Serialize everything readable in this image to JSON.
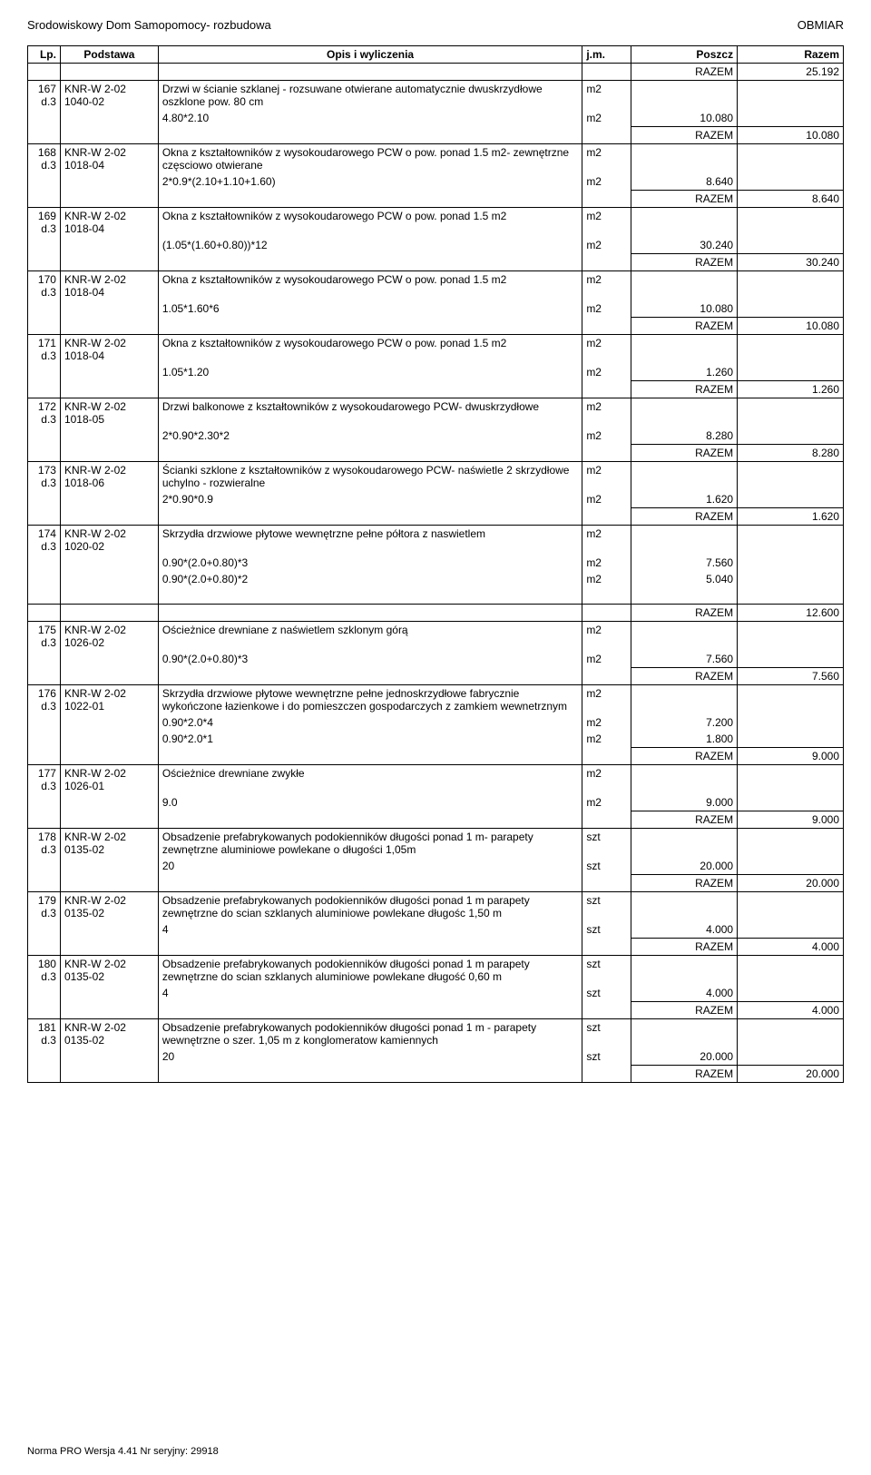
{
  "header": {
    "title_left": "Srodowiskowy Dom Samopomocy- rozbudowa",
    "title_right": "OBMIAR"
  },
  "columns": {
    "lp": "Lp.",
    "podstawa": "Podstawa",
    "opis": "Opis i wyliczenia",
    "jm": "j.m.",
    "poszcz": "Poszcz",
    "razem": "Razem"
  },
  "rows": [
    {
      "type": "razem",
      "label": "RAZEM",
      "value": "25.192"
    },
    {
      "type": "item",
      "lp": "167",
      "dz": "d.3",
      "code": "KNR-W 2-02 1040-02",
      "desc": "Drzwi w ścianie szklanej - rozsuwane  otwierane automatycznie dwuskrzydłowe oszklone pow. 80 cm",
      "jm": "m2"
    },
    {
      "type": "calc",
      "expr": "4.80*2.10",
      "jm": "m2",
      "poszcz": "10.080"
    },
    {
      "type": "razem",
      "label": "RAZEM",
      "value": "10.080"
    },
    {
      "type": "item",
      "lp": "168",
      "dz": "d.3",
      "code": "KNR-W 2-02 1018-04",
      "desc": "Okna z kształtowników z wysokoudarowego PCW o pow. ponad 1.5 m2- zewnętrzne częsciowo otwierane",
      "jm": "m2"
    },
    {
      "type": "calc",
      "expr": "2*0.9*(2.10+1.10+1.60)",
      "jm": "m2",
      "poszcz": "8.640"
    },
    {
      "type": "razem",
      "label": "RAZEM",
      "value": "8.640"
    },
    {
      "type": "item",
      "lp": "169",
      "dz": "d.3",
      "code": "KNR-W 2-02 1018-04",
      "desc": "Okna z kształtowników z wysokoudarowego PCW o pow. ponad 1.5 m2",
      "jm": "m2"
    },
    {
      "type": "calc",
      "expr": "(1.05*(1.60+0.80))*12",
      "jm": "m2",
      "poszcz": "30.240"
    },
    {
      "type": "razem",
      "label": "RAZEM",
      "value": "30.240"
    },
    {
      "type": "item",
      "lp": "170",
      "dz": "d.3",
      "code": "KNR-W 2-02 1018-04",
      "desc": "Okna z kształtowników z wysokoudarowego PCW o pow. ponad 1.5 m2",
      "jm": "m2"
    },
    {
      "type": "calc",
      "expr": "1.05*1.60*6",
      "jm": "m2",
      "poszcz": "10.080"
    },
    {
      "type": "razem",
      "label": "RAZEM",
      "value": "10.080"
    },
    {
      "type": "item",
      "lp": "171",
      "dz": "d.3",
      "code": "KNR-W 2-02 1018-04",
      "desc": "Okna z kształtowników z wysokoudarowego PCW o pow. ponad 1.5 m2",
      "jm": "m2"
    },
    {
      "type": "calc",
      "expr": "1.05*1.20",
      "jm": "m2",
      "poszcz": "1.260"
    },
    {
      "type": "razem",
      "label": "RAZEM",
      "value": "1.260"
    },
    {
      "type": "item",
      "lp": "172",
      "dz": "d.3",
      "code": "KNR-W 2-02 1018-05",
      "desc": "Drzwi balkonowe z kształtowników z wysokoudarowego PCW- dwuskrzydłowe",
      "jm": "m2"
    },
    {
      "type": "calc",
      "expr": "2*0.90*2.30*2",
      "jm": "m2",
      "poszcz": "8.280"
    },
    {
      "type": "razem",
      "label": "RAZEM",
      "value": "8.280"
    },
    {
      "type": "item",
      "lp": "173",
      "dz": "d.3",
      "code": "KNR-W 2-02 1018-06",
      "desc": "Ścianki szklone z kształtowników z wysokoudarowego PCW- naświetle 2 skrzydłowe uchylno - rozwieralne",
      "jm": "m2"
    },
    {
      "type": "calc",
      "expr": "2*0.90*0.9",
      "jm": "m2",
      "poszcz": "1.620"
    },
    {
      "type": "razem",
      "label": "RAZEM",
      "value": "1.620"
    },
    {
      "type": "item",
      "lp": "174",
      "dz": "d.3",
      "code": "KNR-W 2-02 1020-02",
      "desc": "Skrzydła drzwiowe płytowe wewnętrzne pełne półtora z naswietlem",
      "jm": "m2"
    },
    {
      "type": "calc",
      "expr": "0.90*(2.0+0.80)*3",
      "jm": "m2",
      "poszcz": "7.560"
    },
    {
      "type": "calc",
      "expr": "0.90*(2.0+0.80)*2",
      "jm": "m2",
      "poszcz": "5.040"
    },
    {
      "type": "spacer"
    },
    {
      "type": "razem",
      "label": "RAZEM",
      "value": "12.600"
    },
    {
      "type": "item",
      "lp": "175",
      "dz": "d.3",
      "code": "KNR-W 2-02 1026-02",
      "desc": "Ościeżnice drewniane z naświetlem szklonym górą",
      "jm": "m2"
    },
    {
      "type": "calc",
      "expr": "0.90*(2.0+0.80)*3",
      "jm": "m2",
      "poszcz": "7.560"
    },
    {
      "type": "razem",
      "label": "RAZEM",
      "value": "7.560"
    },
    {
      "type": "item",
      "lp": "176",
      "dz": "d.3",
      "code": "KNR-W 2-02 1022-01",
      "desc": "Skrzydła drzwiowe płytowe wewnętrzne pełne jednoskrzydłowe fabrycznie wykończone łazienkowe i do pomieszczen gospodarczych z zamkiem wewnetrznym",
      "jm": "m2"
    },
    {
      "type": "calc",
      "expr": "0.90*2.0*4",
      "jm": "m2",
      "poszcz": "7.200"
    },
    {
      "type": "calc",
      "expr": "0.90*2.0*1",
      "jm": "m2",
      "poszcz": "1.800"
    },
    {
      "type": "razem",
      "label": "RAZEM",
      "value": "9.000"
    },
    {
      "type": "item",
      "lp": "177",
      "dz": "d.3",
      "code": "KNR-W 2-02 1026-01",
      "desc": "Ościeżnice drewniane zwykłe",
      "jm": "m2"
    },
    {
      "type": "calc",
      "expr": "9.0",
      "jm": "m2",
      "poszcz": "9.000"
    },
    {
      "type": "razem",
      "label": "RAZEM",
      "value": "9.000"
    },
    {
      "type": "item",
      "lp": "178",
      "dz": "d.3",
      "code": "KNR-W 2-02 0135-02",
      "desc": "Obsadzenie prefabrykowanych podokienników długości ponad 1 m- parapety zewnętrzne aluminiowe powlekane o długości 1,05m",
      "jm": "szt"
    },
    {
      "type": "calc",
      "expr": "20",
      "jm": "szt",
      "poszcz": "20.000"
    },
    {
      "type": "razem",
      "label": "RAZEM",
      "value": "20.000"
    },
    {
      "type": "item",
      "lp": "179",
      "dz": "d.3",
      "code": "KNR-W 2-02 0135-02",
      "desc": "Obsadzenie prefabrykowanych podokienników długości ponad 1 m parapety zewnętrzne do scian szklanych aluminiowe powlekane długośc 1,50 m",
      "jm": "szt"
    },
    {
      "type": "calc",
      "expr": "4",
      "jm": "szt",
      "poszcz": "4.000"
    },
    {
      "type": "razem",
      "label": "RAZEM",
      "value": "4.000"
    },
    {
      "type": "item",
      "lp": "180",
      "dz": "d.3",
      "code": "KNR-W 2-02 0135-02",
      "desc": "Obsadzenie prefabrykowanych podokienników długości ponad 1 m parapety zewnętrzne do scian szklanych aluminiowe powlekane długość 0,60 m",
      "jm": "szt"
    },
    {
      "type": "calc",
      "expr": "4",
      "jm": "szt",
      "poszcz": "4.000"
    },
    {
      "type": "razem",
      "label": "RAZEM",
      "value": "4.000"
    },
    {
      "type": "item",
      "lp": "181",
      "dz": "d.3",
      "code": "KNR-W 2-02 0135-02",
      "desc": "Obsadzenie prefabrykowanych podokienników długości ponad 1 m - parapety wewnętrzne o szer. 1,05 m z konglomeratow kamiennych",
      "jm": "szt"
    },
    {
      "type": "calc",
      "expr": "20",
      "jm": "szt",
      "poszcz": "20.000"
    },
    {
      "type": "razem",
      "label": "RAZEM",
      "value": "20.000"
    }
  ],
  "footer": "Norma PRO Wersja 4.41 Nr seryjny: 29918"
}
